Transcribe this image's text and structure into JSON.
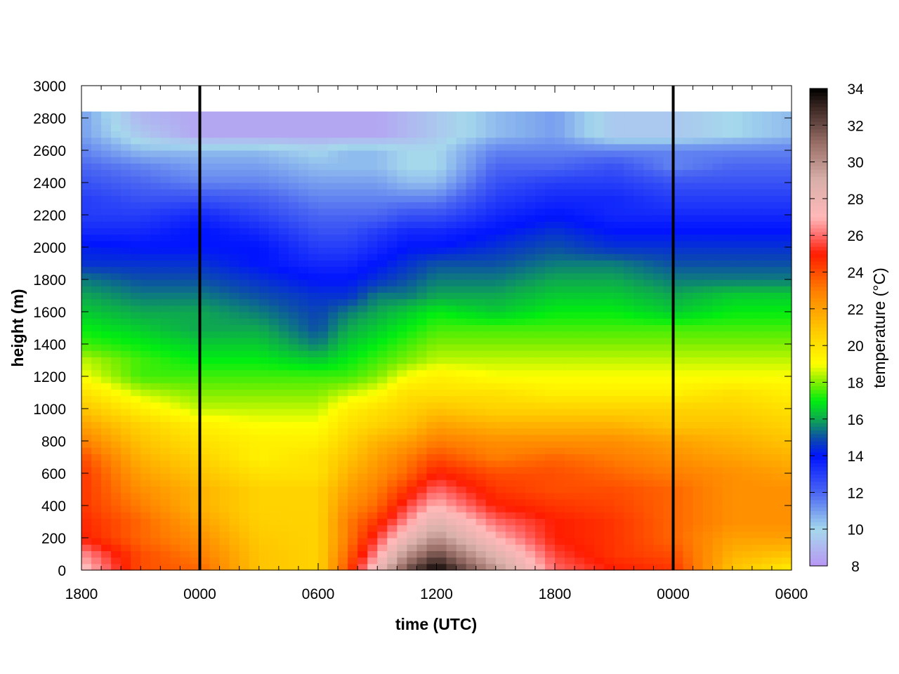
{
  "chart_data": {
    "type": "heatmap",
    "title": "",
    "xlabel": "time (UTC)",
    "ylabel": "height (m)",
    "colorbar_label": "temperature (°C)",
    "x_tick_labels": [
      "1800",
      "0000",
      "0600",
      "1200",
      "1800",
      "0000",
      "0600"
    ],
    "x_tick_hours": [
      0,
      6,
      12,
      18,
      24,
      30,
      36
    ],
    "xlim_hours": [
      0,
      36
    ],
    "y_ticks": [
      0,
      200,
      400,
      600,
      800,
      1000,
      1200,
      1400,
      1600,
      1800,
      2000,
      2200,
      2400,
      2600,
      2800,
      3000
    ],
    "ylim": [
      0,
      3000
    ],
    "data_top_height": 2840,
    "colorbar_ticks": [
      8,
      10,
      12,
      14,
      16,
      18,
      20,
      22,
      24,
      26,
      28,
      30,
      32,
      34
    ],
    "clim": [
      8,
      34
    ],
    "colormap": [
      [
        8,
        "#b896f4"
      ],
      [
        10,
        "#a6d8ec"
      ],
      [
        12,
        "#4a66f2"
      ],
      [
        14,
        "#0014ff"
      ],
      [
        15,
        "#0c4fa8"
      ],
      [
        16,
        "#0ea850"
      ],
      [
        17,
        "#00ee10"
      ],
      [
        18,
        "#80ee00"
      ],
      [
        19,
        "#ffff00"
      ],
      [
        21,
        "#ffc400"
      ],
      [
        23,
        "#ff7e00"
      ],
      [
        25,
        "#ff1c00"
      ],
      [
        26,
        "#ff6a6a"
      ],
      [
        27,
        "#ffb8b8"
      ],
      [
        29,
        "#d9b0aa"
      ],
      [
        31,
        "#9a7068"
      ],
      [
        33,
        "#3a2622"
      ],
      [
        34,
        "#000000"
      ]
    ],
    "midnight_lines_hours": [
      6,
      30
    ],
    "grid": false,
    "profile_heights": [
      0,
      100,
      200,
      300,
      400,
      500,
      600,
      700,
      800,
      900,
      1000,
      1100,
      1200,
      1300,
      1400,
      1500,
      1600,
      1700,
      1800,
      1900,
      2000,
      2100,
      2200,
      2300,
      2400,
      2500,
      2600,
      2700,
      2800
    ],
    "profile_hours": [
      0,
      3,
      6,
      9,
      12,
      13.5,
      15,
      16.5,
      18,
      21,
      24,
      27,
      30,
      33,
      36
    ],
    "temperature_profiles": [
      [
        27.5,
        26.5,
        25,
        24.8,
        24.5,
        24.5,
        24.5,
        24,
        23,
        22,
        21,
        20,
        19,
        18.5,
        17.5,
        17,
        16.5,
        16,
        15.5,
        14.5,
        14.2,
        13.5,
        13,
        13,
        12.5,
        12,
        11.5,
        11,
        11
      ],
      [
        24,
        24,
        23.5,
        23.5,
        23,
        22.5,
        22,
        21.5,
        21,
        20.5,
        19.5,
        18.5,
        17.5,
        17.5,
        17,
        16.5,
        16,
        15.5,
        15,
        14.5,
        14,
        13.5,
        13,
        12.5,
        12,
        11.5,
        10.5,
        9.5,
        9
      ],
      [
        23.5,
        23,
        22.5,
        22,
        21.5,
        21.5,
        21,
        20.5,
        20,
        19.5,
        18.5,
        18,
        17.5,
        17,
        16.5,
        16,
        16,
        15.5,
        15,
        14.5,
        14,
        14,
        13.5,
        12.5,
        11.5,
        11,
        10.5,
        8.5,
        8.5
      ],
      [
        21,
        21,
        20.8,
        20.6,
        20.5,
        20.5,
        20,
        19.5,
        19.5,
        19,
        18.5,
        18,
        17.5,
        17,
        16.5,
        16,
        15.5,
        15,
        14.5,
        14,
        14,
        13.5,
        12.8,
        12.2,
        11.5,
        11,
        10.5,
        8.5,
        8.5
      ],
      [
        20.5,
        20.5,
        20.5,
        20.5,
        20.5,
        20.5,
        20,
        20,
        19.5,
        19,
        18.5,
        18,
        17.5,
        16.5,
        15.5,
        15,
        14.8,
        14.5,
        14,
        13.5,
        13,
        12.5,
        12,
        11.5,
        11,
        10.5,
        10,
        8.5,
        8.5
      ],
      [
        24,
        23.5,
        23,
        23,
        22.5,
        22,
        21.5,
        21,
        20.5,
        20,
        19.5,
        18.5,
        17.5,
        17,
        16.5,
        16,
        15.5,
        14.5,
        14,
        13.5,
        13,
        12.5,
        12,
        11.5,
        11,
        10.5,
        10.5,
        8.5,
        8.5
      ],
      [
        28,
        26.5,
        25.5,
        24.5,
        23.5,
        23,
        22.5,
        22,
        21.5,
        20.5,
        20,
        19,
        18,
        17.5,
        17,
        16.5,
        16,
        15.5,
        14.5,
        14,
        13.5,
        13,
        12,
        11.5,
        11,
        10.5,
        10.5,
        8.5,
        8.5
      ],
      [
        32,
        30,
        28,
        26.5,
        25.5,
        24.5,
        23.5,
        23,
        22,
        21,
        20.5,
        20,
        19,
        18,
        17.5,
        17,
        16.5,
        15.5,
        15,
        14.5,
        14,
        13.5,
        12.5,
        11.5,
        10.5,
        10,
        10,
        9,
        9
      ],
      [
        34,
        32,
        30,
        28.5,
        27,
        26,
        25,
        24,
        23,
        22,
        21,
        20,
        19.5,
        18.5,
        18,
        17.5,
        17,
        16,
        15.5,
        15,
        14,
        13.5,
        12.5,
        11.5,
        10.5,
        10,
        10,
        9.5,
        9.5
      ],
      [
        30,
        28.5,
        27,
        26,
        25,
        24.5,
        24,
        23,
        22.5,
        21.5,
        20.5,
        20,
        19,
        18.5,
        18,
        17.5,
        16.5,
        16,
        15.5,
        15,
        14.5,
        14,
        13.5,
        13,
        12.5,
        12,
        11.5,
        10.5,
        10.5
      ],
      [
        26,
        25.5,
        25,
        25,
        24.5,
        24,
        24,
        23.5,
        22.5,
        21.5,
        20.5,
        19.5,
        19,
        18.5,
        18,
        17.5,
        17,
        16.5,
        16,
        15.5,
        15,
        14.5,
        14,
        13.5,
        13,
        12,
        11.5,
        11,
        11
      ],
      [
        25,
        24.5,
        24.5,
        24.5,
        24.2,
        24,
        23.5,
        23,
        22.5,
        21.5,
        20.5,
        19.5,
        19,
        18.5,
        18,
        17.5,
        17,
        16.5,
        16,
        15.5,
        14.5,
        14,
        13.5,
        13.5,
        13,
        12.5,
        11.5,
        9.5,
        9.5
      ],
      [
        24.5,
        24,
        23.5,
        23.5,
        23.5,
        23.5,
        23,
        22.5,
        22,
        21,
        20.5,
        19.5,
        19,
        18.5,
        18,
        17.5,
        16.5,
        16,
        15.5,
        15,
        14.5,
        14,
        13.5,
        13,
        12.5,
        11.5,
        11.5,
        9.5,
        9.5
      ],
      [
        21,
        21.5,
        22,
        22.5,
        22.5,
        22.5,
        22.5,
        22,
        21.5,
        21,
        20.5,
        20,
        19,
        18.5,
        18,
        17.5,
        17,
        16.5,
        15.5,
        15,
        14.5,
        14,
        13.5,
        13,
        12.5,
        12,
        11.5,
        10,
        10
      ],
      [
        19.5,
        21,
        22,
        22.5,
        22.5,
        22.5,
        22,
        21.5,
        21,
        20.5,
        20,
        19.5,
        19,
        18.5,
        18,
        17.5,
        17,
        16.5,
        15.5,
        15,
        14.5,
        14,
        13.5,
        13,
        12.5,
        12,
        11.5,
        10.5,
        10.5
      ]
    ]
  }
}
